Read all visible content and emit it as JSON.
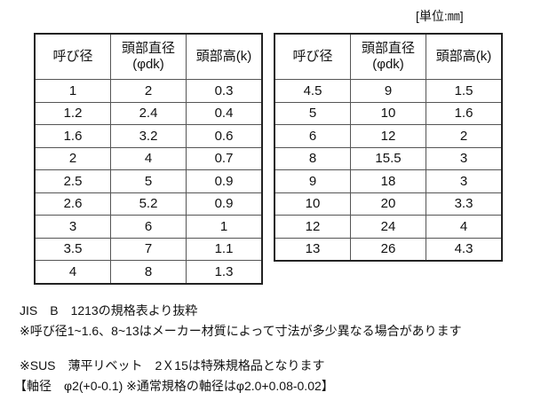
{
  "unit_label": "[単位:㎜]",
  "headers": [
    "呼び径",
    "頭部直径\n(φdk)",
    "頭部高(k)"
  ],
  "header_lines": {
    "h1": "呼び径",
    "h2a": "頭部直径",
    "h2b": "(φdk)",
    "h3": "頭部高(k)"
  },
  "table_left": [
    [
      "1",
      "2",
      "0.3"
    ],
    [
      "1.2",
      "2.4",
      "0.4"
    ],
    [
      "1.6",
      "3.2",
      "0.6"
    ],
    [
      "2",
      "4",
      "0.7"
    ],
    [
      "2.5",
      "5",
      "0.9"
    ],
    [
      "2.6",
      "5.2",
      "0.9"
    ],
    [
      "3",
      "6",
      "1"
    ],
    [
      "3.5",
      "7",
      "1.1"
    ],
    [
      "4",
      "8",
      "1.3"
    ]
  ],
  "table_right": [
    [
      "4.5",
      "9",
      "1.5"
    ],
    [
      "5",
      "10",
      "1.6"
    ],
    [
      "6",
      "12",
      "2"
    ],
    [
      "8",
      "15.5",
      "3"
    ],
    [
      "9",
      "18",
      "3"
    ],
    [
      "10",
      "20",
      "3.3"
    ],
    [
      "12",
      "24",
      "4"
    ],
    [
      "13",
      "26",
      "4.3"
    ]
  ],
  "notes": [
    "JIS　B　1213の規格表より抜粋",
    "※呼び径1~1.6、8~13はメーカー材質によって寸法が多少異なる場合があります",
    "※SUS　薄平リベット　2Ｘ15は特殊規格品となります",
    "【軸径　φ2(+0-0.1) ※通常規格の軸径はφ2.0+0.08-0.02】"
  ]
}
